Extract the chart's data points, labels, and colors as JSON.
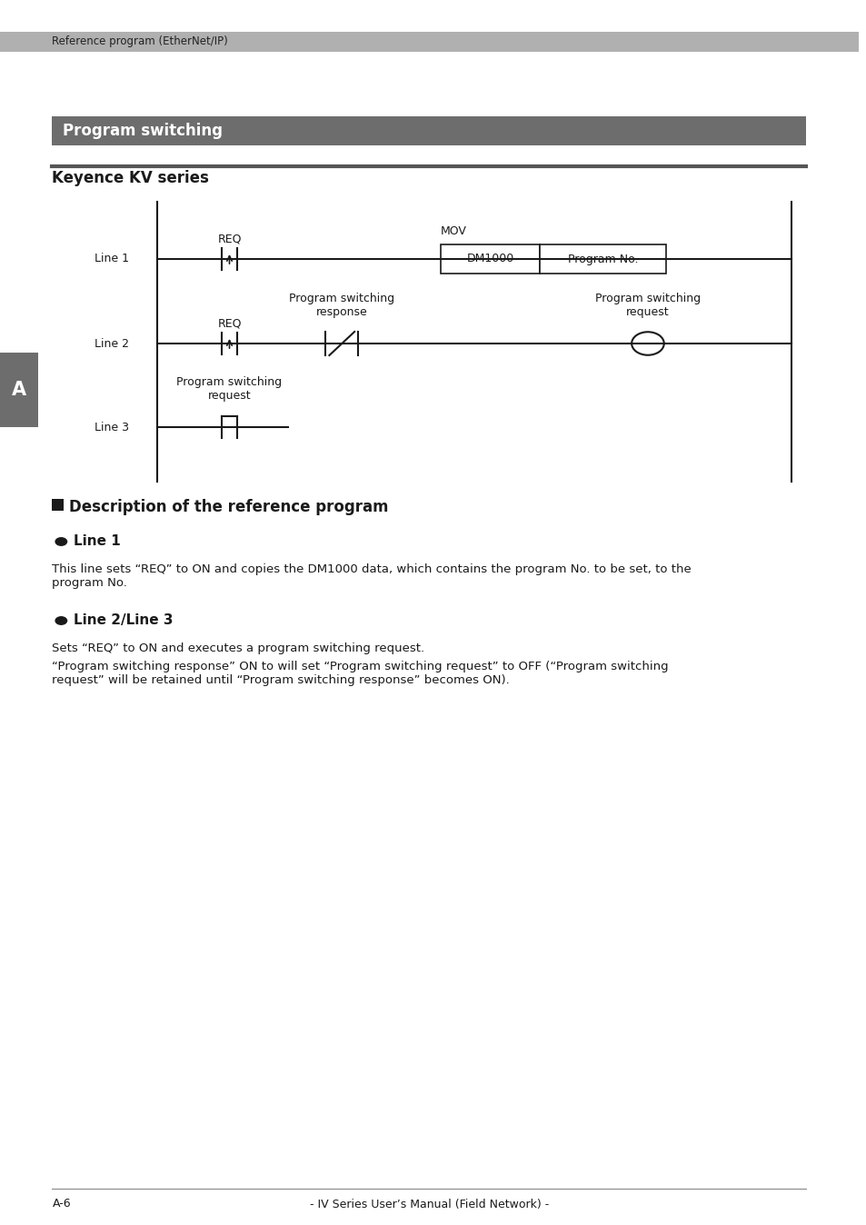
{
  "page_header": "Reference program (EtherNet/IP)",
  "section_title": "Program switching",
  "subsection_title": "Keyence KV series",
  "header_bg": "#aaaaaa",
  "section_bg": "#6d6d6d",
  "subsection_line_color": "#555555",
  "bg_color": "#ffffff",
  "text_color": "#1a1a1a",
  "footer_text": "- IV Series User’s Manual (Field Network) -",
  "footer_left": "A-6",
  "sidebar_label": "A",
  "sidebar_bg": "#6d6d6d",
  "description_header": "Description of the reference program",
  "bullet_line1_title": "Line 1",
  "bullet_line1_text": "This line sets “REQ” to ON and copies the DM1000 data, which contains the program No. to be set, to the\nprogram No.",
  "bullet_line23_title": "Line 2/Line 3",
  "bullet_line23_text1": "Sets “REQ” to ON and executes a program switching request.",
  "bullet_line23_text2": "“Program switching response” ON to will set “Program switching request” to OFF (“Program switching\nrequest” will be retained until “Program switching response” becomes ON).",
  "ladder_line1_label": "Line 1",
  "ladder_line2_label": "Line 2",
  "ladder_line3_label": "Line 3",
  "req_label": "REQ",
  "mov_label": "MOV",
  "dm1000_label": "DM1000",
  "program_no_label": "Program No.",
  "prog_switch_response": "Program switching\nresponse",
  "prog_switch_request_coil": "Program switching\nrequest",
  "prog_switch_request_contact": "Program switching\nrequest"
}
